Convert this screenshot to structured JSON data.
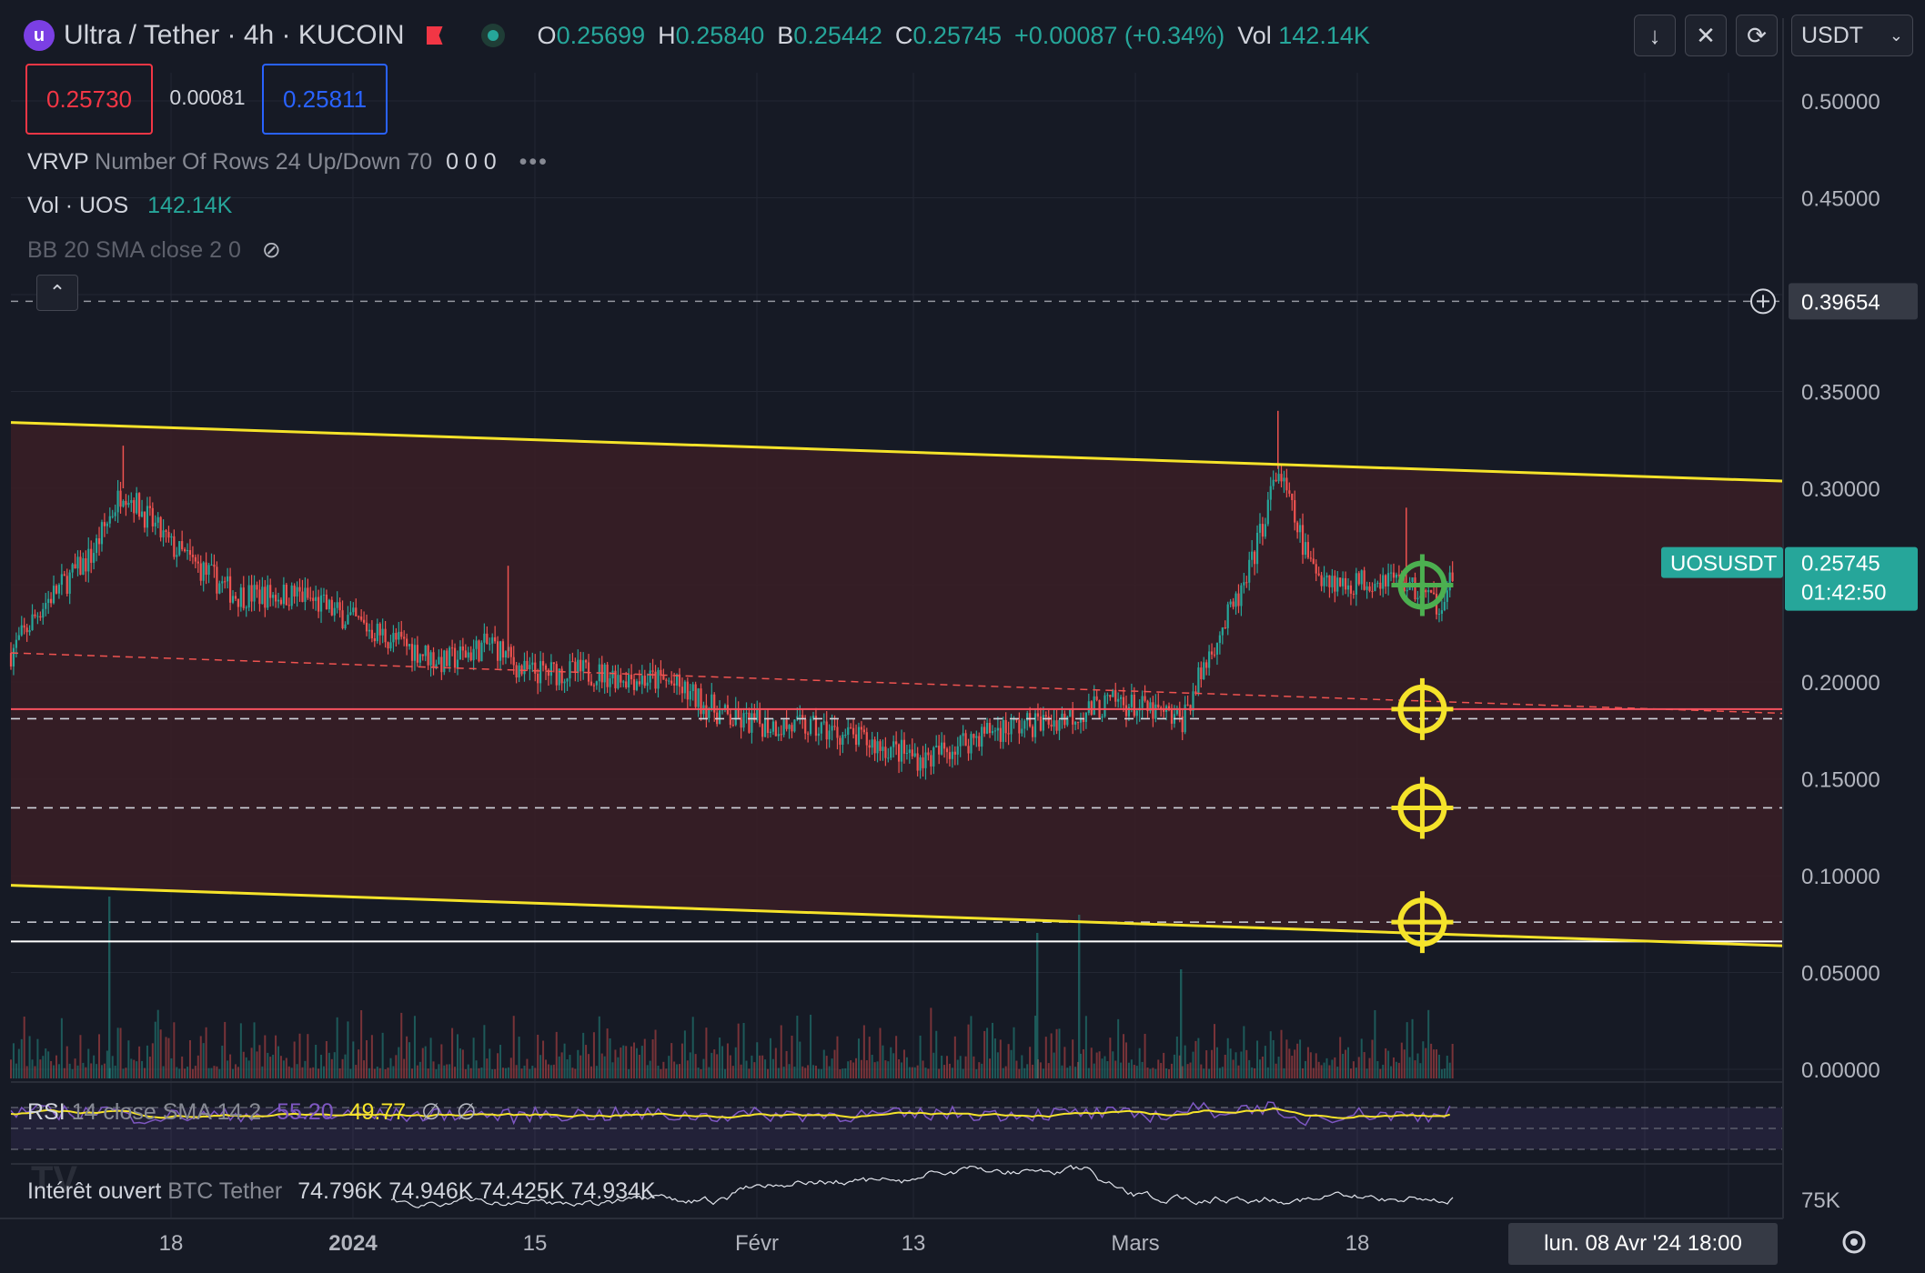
{
  "header": {
    "symbol_title": "Ultra / Tether · 4h · KUCOIN",
    "ohlc": [
      {
        "k": "O",
        "v": "0.25699"
      },
      {
        "k": "H",
        "v": "0.25840"
      },
      {
        "k": "B",
        "v": "0.25442"
      },
      {
        "k": "C",
        "v": "0.25745"
      }
    ],
    "change": "+0.00087 (+0.34%)",
    "vol_label": "Vol",
    "vol_value": "142.14K",
    "currency": "USDT"
  },
  "trade": {
    "sell": "0.25730",
    "spread": "0.00081",
    "buy": "0.25811"
  },
  "indicators": {
    "vrvp": {
      "name": "VRVP",
      "params": "Number Of Rows 24 Up/Down 70",
      "values": "0 0 0"
    },
    "vol": {
      "name": "Vol · UOS",
      "value": "142.14K"
    },
    "bb": {
      "name": "BB 20 SMA close 2 0"
    },
    "rsi": {
      "name": "RSI",
      "params": "14 close SMA 14 2",
      "rsi_value": "55.20",
      "sma_value": "49.77",
      "extra1": "∅",
      "extra2": "∅"
    },
    "oi": {
      "name": "Intérêt ouvert",
      "params": "BTC Tether",
      "values": "74.796K  74.946K  74.425K  74.934K"
    }
  },
  "price_axis": {
    "ticks": [
      "0.50000",
      "0.45000",
      "0.39654",
      "0.35000",
      "0.30000",
      "0.25745",
      "0.20000",
      "0.15000",
      "0.10000",
      "0.05000",
      "0.00000"
    ],
    "symbol_tag": "UOSUSDT",
    "last_price": "0.25745",
    "countdown": "01:42:50",
    "crosshair_price": "0.39654",
    "oi_tick": "75K"
  },
  "time_axis": {
    "labels": [
      "18",
      "2024",
      "15",
      "Févr",
      "13",
      "Mars",
      "18"
    ],
    "crosshair_label": "lun. 08 Avr '24   18:00"
  },
  "chart_data": {
    "type": "candlestick",
    "symbol": "UOSUSDT",
    "interval": "4h",
    "ylim": [
      0,
      0.5
    ],
    "start_date": "2023-12-10",
    "price_path": [
      {
        "date": "2023-12-10",
        "price": 0.215
      },
      {
        "date": "2023-12-12",
        "price": 0.24
      },
      {
        "date": "2023-12-15",
        "price": 0.265
      },
      {
        "date": "2023-12-17",
        "price": 0.3
      },
      {
        "date": "2023-12-20",
        "price": 0.27
      },
      {
        "date": "2023-12-24",
        "price": 0.245
      },
      {
        "date": "2023-12-28",
        "price": 0.245
      },
      {
        "date": "2024-01-02",
        "price": 0.225
      },
      {
        "date": "2024-01-06",
        "price": 0.21
      },
      {
        "date": "2024-01-09",
        "price": 0.22
      },
      {
        "date": "2024-01-11",
        "price": 0.205
      },
      {
        "date": "2024-01-15",
        "price": 0.205
      },
      {
        "date": "2024-01-20",
        "price": 0.2
      },
      {
        "date": "2024-01-24",
        "price": 0.18
      },
      {
        "date": "2024-01-30",
        "price": 0.175
      },
      {
        "date": "2024-02-05",
        "price": 0.16
      },
      {
        "date": "2024-02-09",
        "price": 0.175
      },
      {
        "date": "2024-02-13",
        "price": 0.18
      },
      {
        "date": "2024-02-17",
        "price": 0.19
      },
      {
        "date": "2024-02-21",
        "price": 0.18
      },
      {
        "date": "2024-02-23",
        "price": 0.22
      },
      {
        "date": "2024-02-25",
        "price": 0.25
      },
      {
        "date": "2024-02-27",
        "price": 0.31
      },
      {
        "date": "2024-02-29",
        "price": 0.26
      },
      {
        "date": "2024-03-02",
        "price": 0.25
      },
      {
        "date": "2024-03-05",
        "price": 0.255
      },
      {
        "date": "2024-03-08",
        "price": 0.24
      },
      {
        "date": "2024-03-09",
        "price": 0.257
      }
    ],
    "spikes": [
      {
        "date": "2023-12-17",
        "high": 0.322
      },
      {
        "date": "2024-01-10",
        "high": 0.26
      },
      {
        "date": "2024-02-27",
        "high": 0.34
      },
      {
        "date": "2024-03-06",
        "high": 0.29
      }
    ],
    "channel_upper": [
      {
        "date": "2023-12-10",
        "price": 0.334
      },
      {
        "date": "2024-04-12",
        "price": 0.3
      }
    ],
    "channel_lower": [
      {
        "date": "2023-12-10",
        "price": 0.095
      },
      {
        "date": "2024-04-12",
        "price": 0.06
      }
    ],
    "red_dashed_trend": [
      {
        "date": "2023-12-10",
        "price": 0.215
      },
      {
        "date": "2024-04-12",
        "price": 0.18
      }
    ],
    "horizontal_levels": [
      {
        "price": 0.186,
        "style": "solid",
        "color": "#f7525f"
      },
      {
        "price": 0.181,
        "style": "dashed",
        "color": "#d1d4dc"
      },
      {
        "price": 0.135,
        "style": "dashed",
        "color": "#d1d4dc"
      },
      {
        "price": 0.076,
        "style": "dashed",
        "color": "#d1d4dc"
      },
      {
        "price": 0.066,
        "style": "solid",
        "color": "#ffffff"
      }
    ],
    "targets": [
      {
        "date": "2024-03-07",
        "price": 0.25,
        "color": "#4caf50"
      },
      {
        "date": "2024-03-07",
        "price": 0.186,
        "color": "#f5e32a"
      },
      {
        "date": "2024-03-07",
        "price": 0.135,
        "color": "#f5e32a"
      },
      {
        "date": "2024-03-07",
        "price": 0.076,
        "color": "#f5e32a"
      }
    ],
    "crosshair": {
      "date": "2024-04-08",
      "price": 0.39654
    },
    "rsi_last": 55.2,
    "rsi_sma_last": 49.77,
    "oi_last": 74934
  },
  "colors": {
    "up": "#26a69a",
    "down": "#ef5350",
    "channel": "#f5e32a",
    "zone": "#3a1f26",
    "bg": "#161a25"
  }
}
